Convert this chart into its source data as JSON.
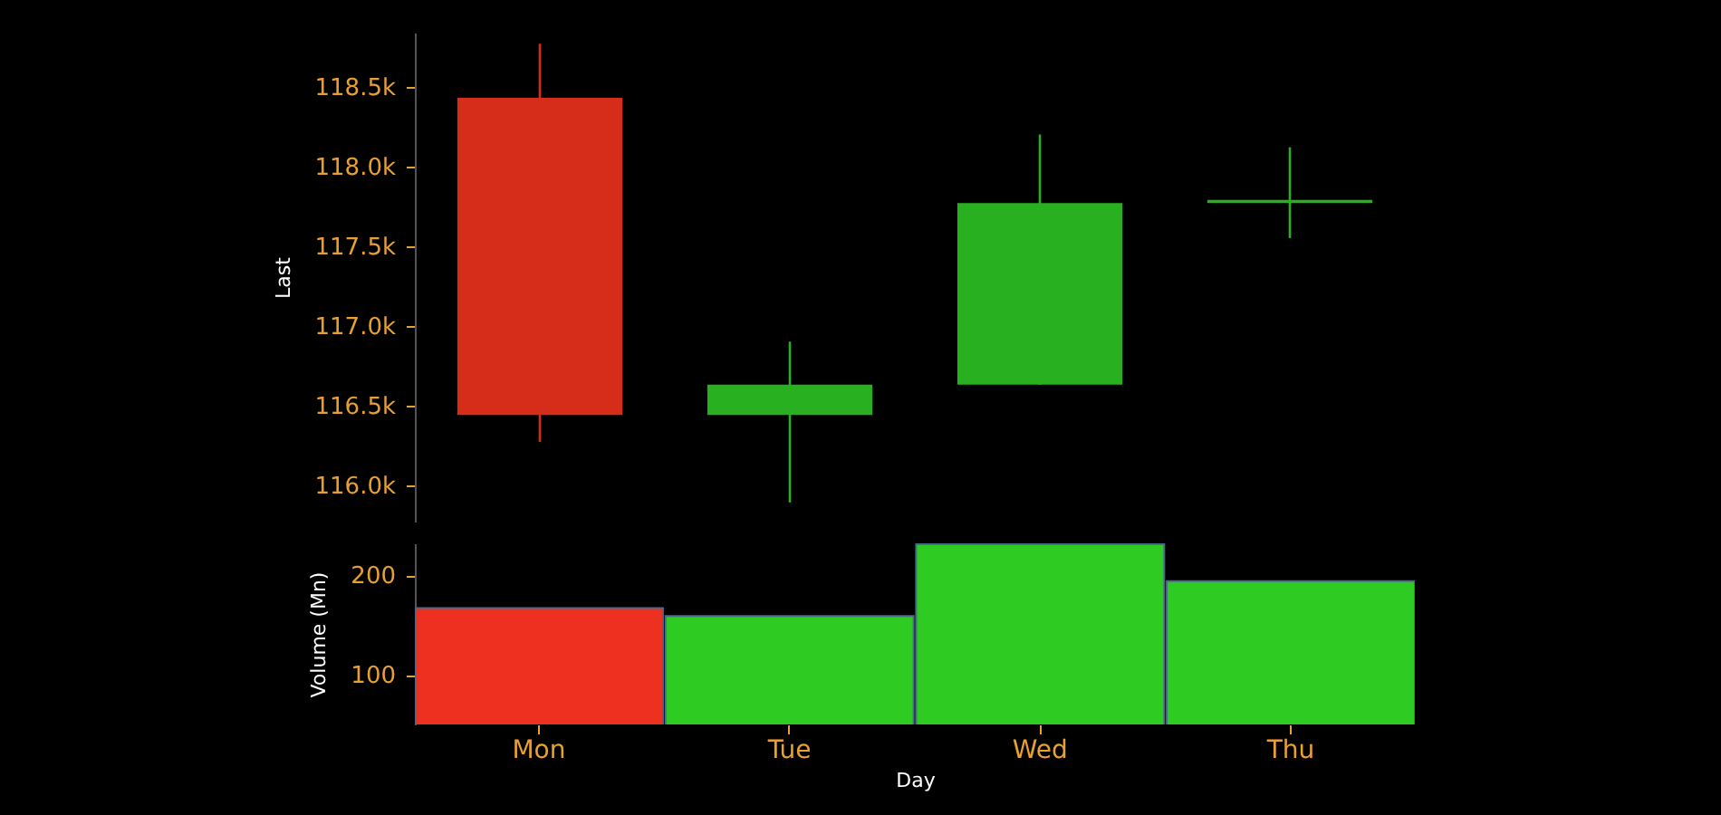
{
  "chart_data": [
    {
      "type": "candlestick",
      "ylabel": "Last",
      "categories": [
        null,
        null,
        null,
        null
      ],
      "ohlc": [
        [
          118430,
          118770,
          116270,
          116440
        ],
        [
          116440,
          116900,
          115890,
          116630
        ],
        [
          116630,
          118200,
          116630,
          117770
        ],
        [
          117770,
          118120,
          117550,
          117790
        ]
      ],
      "colors": [
        "#d62c1a",
        "#29b020",
        "#29b020",
        "#29b020"
      ],
      "ylim": [
        115770,
        118840
      ],
      "yticks": [
        {
          "value": 116000,
          "label": "116.0k"
        },
        {
          "value": 116500,
          "label": "116.5k"
        },
        {
          "value": 117000,
          "label": "117.0k"
        },
        {
          "value": 117500,
          "label": "117.5k"
        },
        {
          "value": 118000,
          "label": "118.0k"
        },
        {
          "value": 118500,
          "label": "118.5k"
        }
      ],
      "tick_labels": "y"
    },
    {
      "type": "bar",
      "xlabel": "Day",
      "ylabel": "Volume (Mn)",
      "categories": [
        "Mon",
        "Tue",
        "Wed",
        "Thu"
      ],
      "values": [
        167,
        159,
        231,
        194
      ],
      "colors": [
        "#ee3020",
        "#2ecc22",
        "#2ecc22",
        "#2ecc22"
      ],
      "ylim": [
        50,
        232
      ],
      "yticks": [
        100,
        200
      ]
    }
  ]
}
